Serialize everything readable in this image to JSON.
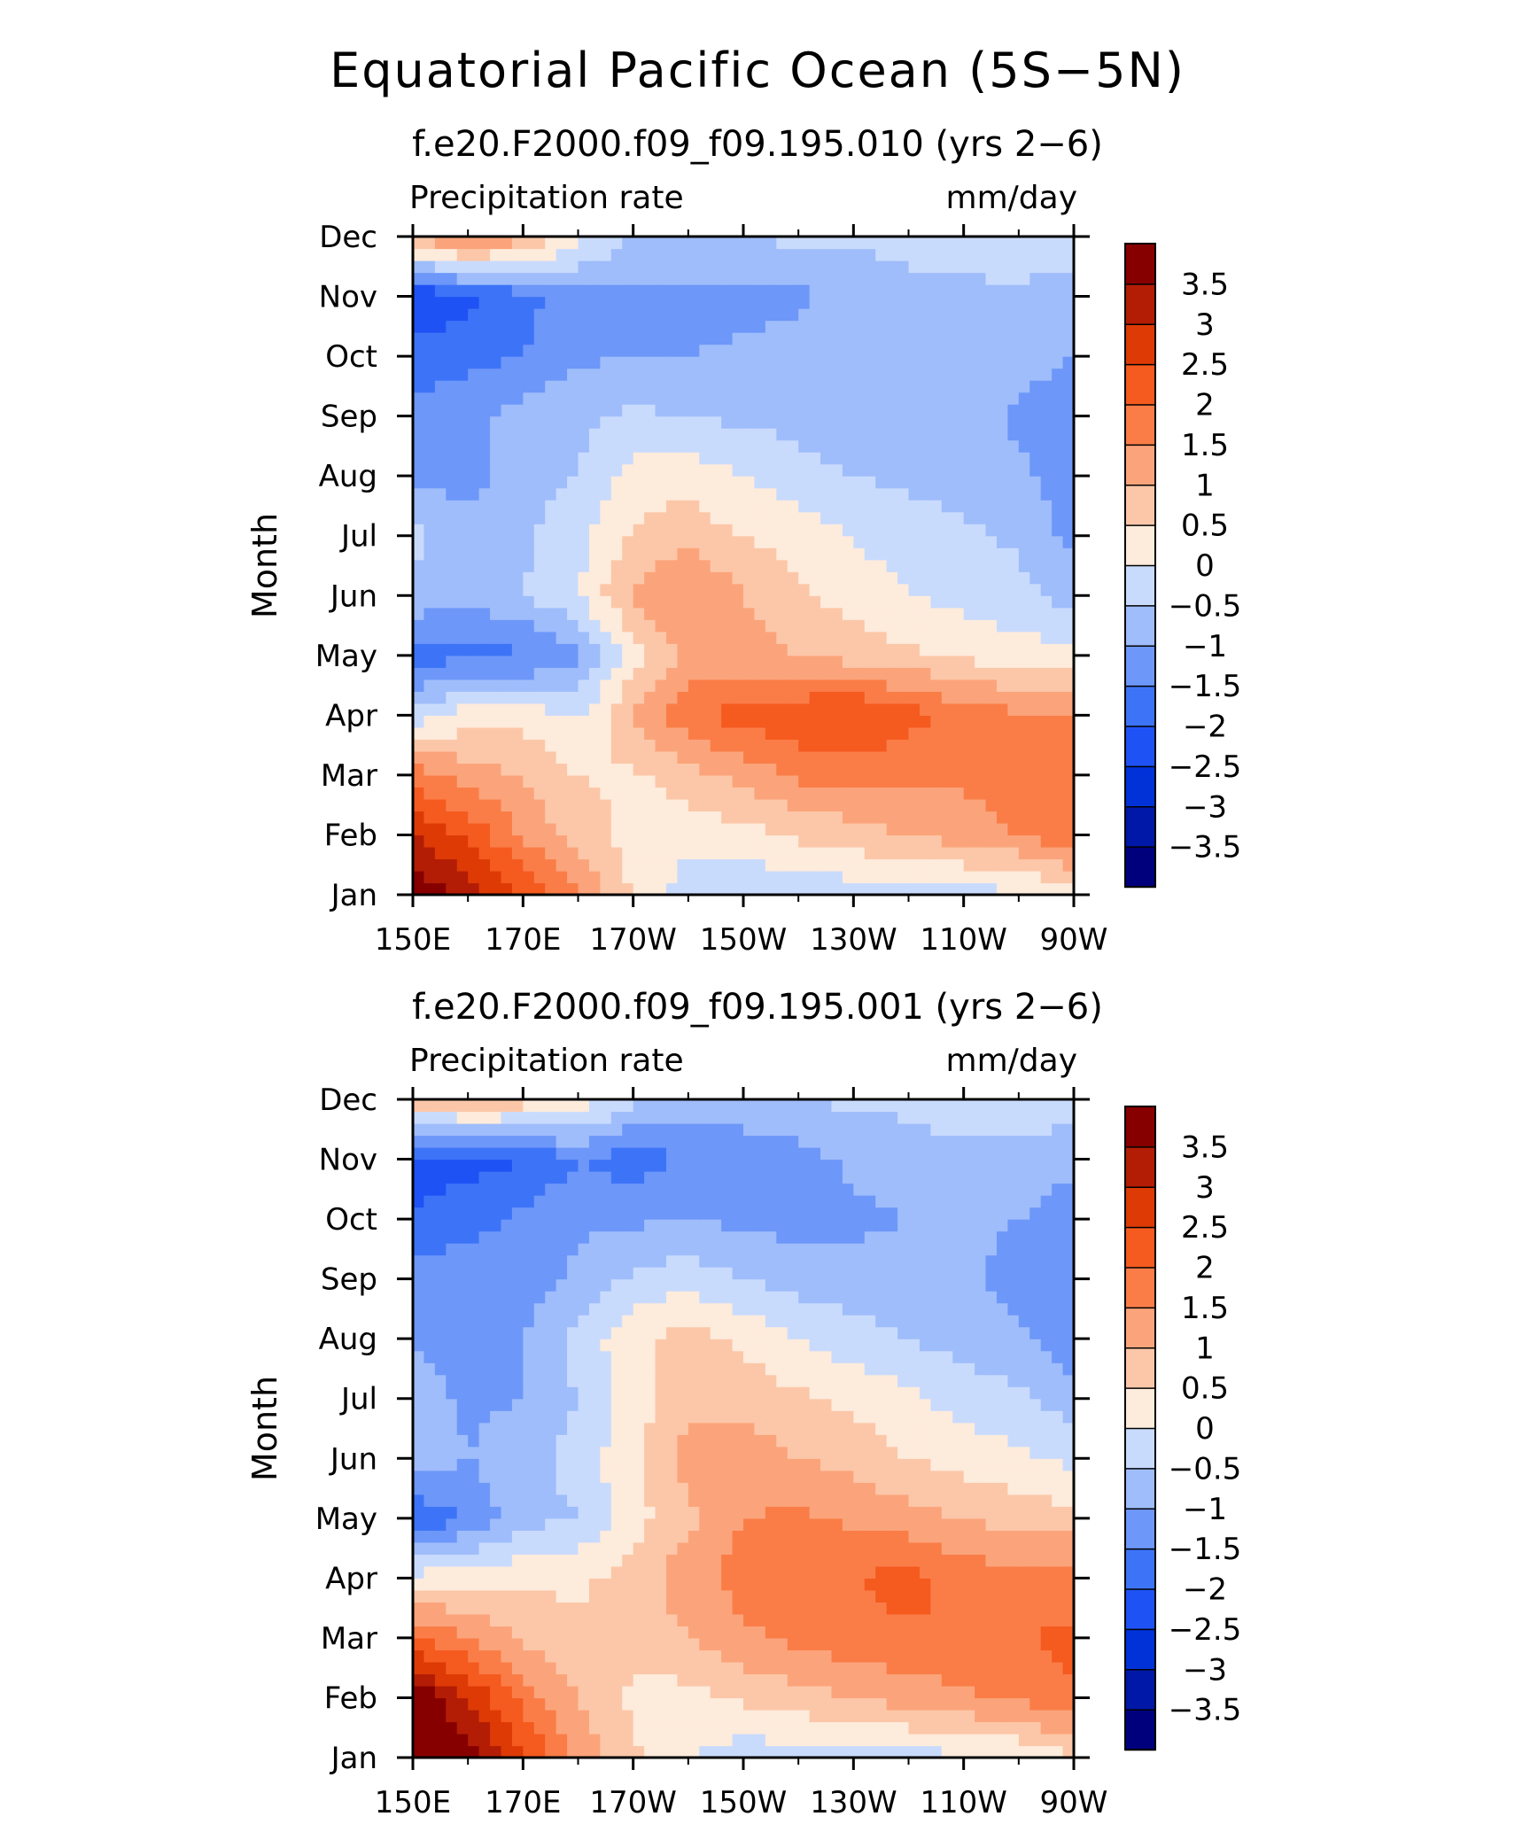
{
  "title": "Equatorial Pacific Ocean (5S−5N)",
  "chart_data": [
    {
      "type": "heatmap",
      "subtitle": "f.e20.F2000.f09_f09.195.010 (yrs 2−6)",
      "left_label": "Precipitation rate",
      "right_label": "mm/day",
      "ylabel": "Month",
      "xlabel": "",
      "x_tick_labels": [
        "150E",
        "170E",
        "170W",
        "150W",
        "130W",
        "110W",
        "90W"
      ],
      "x_ticks": [
        150,
        170,
        190,
        210,
        230,
        250,
        270
      ],
      "xlim": [
        150,
        270
      ],
      "y_tick_labels": [
        "Jan",
        "Feb",
        "Mar",
        "Apr",
        "May",
        "Jun",
        "Jul",
        "Aug",
        "Sep",
        "Oct",
        "Nov",
        "Dec"
      ],
      "ylim": [
        1,
        12
      ],
      "colorbar_levels": [
        -4,
        -3.5,
        -3,
        -2.5,
        -2,
        -1.5,
        -1,
        -0.5,
        0,
        0.5,
        1,
        1.5,
        2,
        2.5,
        3,
        3.5,
        4
      ],
      "colorbar_labels": [
        "3.5",
        "3",
        "2.5",
        "2",
        "1.5",
        "1",
        "0.5",
        "0",
        "−0.5",
        "−1",
        "−1.5",
        "−2",
        "−2.5",
        "−3",
        "−3.5"
      ],
      "z": [
        [
          4.0,
          3.2,
          2.5,
          1.6,
          0.4,
          -0.3,
          -0.4,
          -0.4,
          -0.3,
          -0.2,
          -0.2,
          -0.1,
          0.2
        ],
        [
          3.0,
          2.4,
          1.4,
          0.8,
          0.3,
          0.2,
          0.3,
          0.6,
          0.8,
          1.0,
          1.2,
          1.5,
          2.0
        ],
        [
          1.8,
          1.2,
          1.0,
          0.5,
          0.4,
          0.8,
          1.2,
          1.6,
          1.6,
          1.6,
          1.6,
          1.8,
          1.9
        ],
        [
          -0.3,
          0.3,
          0.3,
          0.0,
          1.0,
          1.9,
          2.2,
          2.4,
          2.6,
          2.2,
          1.8,
          1.6,
          1.6
        ],
        [
          -1.8,
          -1.6,
          -1.6,
          -1.2,
          0.3,
          1.1,
          1.2,
          1.0,
          0.8,
          0.6,
          0.4,
          0.2,
          0.2
        ],
        [
          -0.6,
          -0.9,
          -0.5,
          0.0,
          1.1,
          1.6,
          1.0,
          0.6,
          0.3,
          0.0,
          -0.2,
          -0.3,
          -0.7
        ],
        [
          -0.4,
          -0.7,
          -0.6,
          -0.2,
          0.6,
          0.8,
          0.5,
          0.3,
          0.0,
          -0.3,
          -0.4,
          -0.6,
          -1.2
        ],
        [
          -1.1,
          -1.2,
          -0.7,
          -0.5,
          0.2,
          0.3,
          0.0,
          -0.3,
          -0.5,
          -0.6,
          -0.7,
          -0.9,
          -1.3
        ],
        [
          -1.4,
          -1.1,
          -0.8,
          -0.6,
          -0.4,
          -0.5,
          -0.6,
          -0.7,
          -0.8,
          -0.8,
          -0.8,
          -1.1,
          -1.3
        ],
        [
          -1.8,
          -1.7,
          -1.5,
          -1.1,
          -1.0,
          -1.0,
          -0.9,
          -0.8,
          -0.7,
          -0.7,
          -0.8,
          -0.8,
          -1.0
        ],
        [
          -2.5,
          -2.1,
          -1.7,
          -1.2,
          -1.1,
          -1.1,
          -1.2,
          -1.1,
          -0.8,
          -0.6,
          -0.6,
          -0.6,
          -0.7
        ],
        [
          1.0,
          1.8,
          1.2,
          0.2,
          -0.6,
          -0.6,
          -0.5,
          -0.4,
          -0.4,
          -0.4,
          -0.3,
          -0.2,
          -0.2
        ]
      ]
    },
    {
      "type": "heatmap",
      "subtitle": "f.e20.F2000.f09_f09.195.001 (yrs 2−6)",
      "left_label": "Precipitation rate",
      "right_label": "mm/day",
      "ylabel": "Month",
      "xlabel": "",
      "x_tick_labels": [
        "150E",
        "170E",
        "170W",
        "150W",
        "130W",
        "110W",
        "90W"
      ],
      "x_ticks": [
        150,
        170,
        190,
        210,
        230,
        250,
        270
      ],
      "xlim": [
        150,
        270
      ],
      "y_tick_labels": [
        "Jan",
        "Feb",
        "Mar",
        "Apr",
        "May",
        "Jun",
        "Jul",
        "Aug",
        "Sep",
        "Oct",
        "Nov",
        "Dec"
      ],
      "ylim": [
        1,
        12
      ],
      "colorbar_levels": [
        -4,
        -3.5,
        -3,
        -2.5,
        -2,
        -1.5,
        -1,
        -0.5,
        0,
        0.5,
        1,
        1.5,
        2,
        2.5,
        3,
        3.5,
        4
      ],
      "colorbar_labels": [
        "3.5",
        "3",
        "2.5",
        "2",
        "1.5",
        "1",
        "0.5",
        "0",
        "−0.5",
        "−1",
        "−1.5",
        "−2",
        "−2.5",
        "−3",
        "−3.5"
      ],
      "z": [
        [
          4.0,
          3.8,
          2.6,
          1.4,
          0.6,
          0.0,
          -0.3,
          -0.3,
          -0.2,
          -0.2,
          -0.1,
          0.0,
          0.4
        ],
        [
          4.0,
          3.0,
          1.8,
          1.0,
          0.4,
          0.3,
          0.6,
          0.8,
          1.0,
          1.2,
          1.4,
          1.6,
          2.0
        ],
        [
          2.0,
          1.5,
          0.9,
          0.6,
          0.6,
          1.0,
          1.4,
          1.6,
          1.8,
          1.9,
          2.0,
          2.0,
          2.1
        ],
        [
          0.2,
          0.3,
          0.4,
          0.4,
          0.7,
          1.3,
          1.7,
          1.8,
          2.0,
          2.2,
          1.8,
          1.6,
          1.8
        ],
        [
          -2.0,
          -1.4,
          -0.7,
          -0.5,
          0.3,
          0.9,
          1.5,
          1.6,
          1.4,
          1.2,
          1.0,
          0.8,
          0.7
        ],
        [
          -0.6,
          -1.0,
          -0.7,
          -0.3,
          0.4,
          1.2,
          1.3,
          1.0,
          0.8,
          0.5,
          0.3,
          0.1,
          -0.1
        ],
        [
          -0.8,
          -1.1,
          -1.0,
          -0.5,
          0.2,
          0.8,
          0.8,
          0.6,
          0.4,
          0.1,
          -0.2,
          -0.4,
          -0.8
        ],
        [
          -1.0,
          -1.2,
          -1.0,
          -0.3,
          0.4,
          0.7,
          0.4,
          0.0,
          -0.3,
          -0.5,
          -0.7,
          -0.9,
          -1.3
        ],
        [
          -1.3,
          -1.1,
          -1.3,
          -0.9,
          -0.4,
          -0.2,
          -0.5,
          -0.7,
          -0.8,
          -0.8,
          -0.9,
          -1.2,
          -1.4
        ],
        [
          -2.0,
          -1.7,
          -1.4,
          -1.1,
          -1.1,
          -1.0,
          -1.1,
          -1.2,
          -1.1,
          -1.0,
          -0.9,
          -1.0,
          -1.4
        ],
        [
          -2.2,
          -2.2,
          -2.0,
          -1.5,
          -1.8,
          -1.4,
          -1.3,
          -1.2,
          -0.9,
          -0.7,
          -0.6,
          -0.6,
          -0.8
        ],
        [
          0.8,
          1.0,
          0.8,
          0.4,
          -0.4,
          -0.8,
          -0.7,
          -0.5,
          -0.4,
          -0.4,
          -0.3,
          -0.3,
          -0.3
        ]
      ]
    }
  ],
  "colors": {
    "palette": [
      "#00007c",
      "#0018a8",
      "#0032d8",
      "#1f52f5",
      "#3d74f7",
      "#6d97f9",
      "#9fbdfb",
      "#c9dbfd",
      "#fdebdc",
      "#fcc7a8",
      "#fba47b",
      "#fa7d48",
      "#f55a1f",
      "#dd3a06",
      "#b31d05",
      "#860000"
    ]
  }
}
